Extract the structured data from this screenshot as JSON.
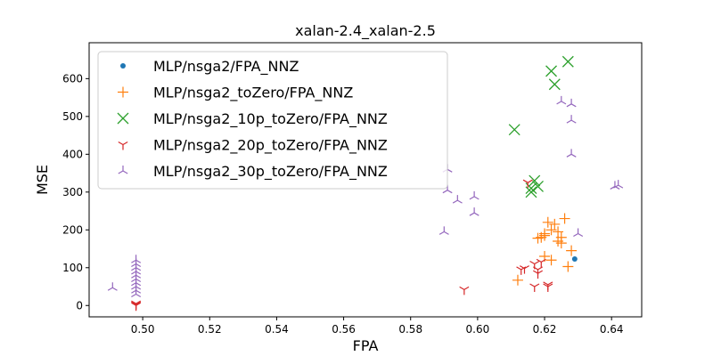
{
  "chart_data": {
    "type": "scatter",
    "title": "xalan-2.4_xalan-2.5",
    "xlabel": "FPA",
    "ylabel": "MSE",
    "xlim": [
      0.484,
      0.649
    ],
    "ylim": [
      -30,
      695
    ],
    "xticks": [
      0.5,
      0.52,
      0.54,
      0.56,
      0.58,
      0.6,
      0.62,
      0.64
    ],
    "xtick_labels": [
      "0.50",
      "0.52",
      "0.54",
      "0.56",
      "0.58",
      "0.60",
      "0.62",
      "0.64"
    ],
    "yticks": [
      0,
      100,
      200,
      300,
      400,
      500,
      600
    ],
    "ytick_labels": [
      "0",
      "100",
      "200",
      "300",
      "400",
      "500",
      "600"
    ],
    "grid": false,
    "legend_position": "top-left",
    "series": [
      {
        "name": "MLP/nsga2/FPA_NNZ",
        "marker": "dot",
        "color": "#1f77b4",
        "points": [
          [
            0.629,
            123
          ]
        ]
      },
      {
        "name": "MLP/nsga2_toZero/FPA_NNZ",
        "marker": "plus",
        "color": "#ff7f0e",
        "points": [
          [
            0.612,
            67
          ],
          [
            0.619,
            180
          ],
          [
            0.62,
            185
          ],
          [
            0.62,
            190
          ],
          [
            0.621,
            220
          ],
          [
            0.622,
            200
          ],
          [
            0.62,
            130
          ],
          [
            0.622,
            120
          ],
          [
            0.624,
            170
          ],
          [
            0.623,
            215
          ],
          [
            0.624,
            195
          ],
          [
            0.625,
            180
          ],
          [
            0.625,
            165
          ],
          [
            0.626,
            230
          ],
          [
            0.628,
            145
          ],
          [
            0.627,
            103
          ],
          [
            0.618,
            178
          ]
        ]
      },
      {
        "name": "MLP/nsga2_10p_toZero/FPA_NNZ",
        "marker": "x",
        "color": "#2ca02c",
        "points": [
          [
            0.611,
            465
          ],
          [
            0.616,
            300
          ],
          [
            0.616,
            310
          ],
          [
            0.617,
            330
          ],
          [
            0.618,
            315
          ],
          [
            0.622,
            620
          ],
          [
            0.623,
            585
          ],
          [
            0.627,
            645
          ]
        ]
      },
      {
        "name": "MLP/nsga2_20p_toZero/FPA_NNZ",
        "marker": "tri_down",
        "color": "#d62728",
        "points": [
          [
            0.498,
            0
          ],
          [
            0.498,
            2
          ],
          [
            0.498,
            5
          ],
          [
            0.596,
            42
          ],
          [
            0.613,
            95
          ],
          [
            0.614,
            98
          ],
          [
            0.615,
            325
          ],
          [
            0.617,
            110
          ],
          [
            0.617,
            50
          ],
          [
            0.618,
            85
          ],
          [
            0.618,
            95
          ],
          [
            0.619,
            115
          ],
          [
            0.621,
            55
          ],
          [
            0.621,
            50
          ]
        ]
      },
      {
        "name": "MLP/nsga2_30p_toZero/FPA_NNZ",
        "marker": "tri_up",
        "color": "#9467bd",
        "points": [
          [
            0.491,
            47
          ],
          [
            0.498,
            30
          ],
          [
            0.498,
            40
          ],
          [
            0.498,
            50
          ],
          [
            0.498,
            60
          ],
          [
            0.498,
            70
          ],
          [
            0.498,
            80
          ],
          [
            0.498,
            90
          ],
          [
            0.498,
            100
          ],
          [
            0.498,
            110
          ],
          [
            0.498,
            120
          ],
          [
            0.59,
            195
          ],
          [
            0.591,
            305
          ],
          [
            0.591,
            360
          ],
          [
            0.594,
            278
          ],
          [
            0.599,
            288
          ],
          [
            0.599,
            245
          ],
          [
            0.625,
            540
          ],
          [
            0.628,
            533
          ],
          [
            0.628,
            490
          ],
          [
            0.628,
            400
          ],
          [
            0.63,
            190
          ],
          [
            0.641,
            315
          ],
          [
            0.642,
            318
          ]
        ]
      }
    ]
  }
}
